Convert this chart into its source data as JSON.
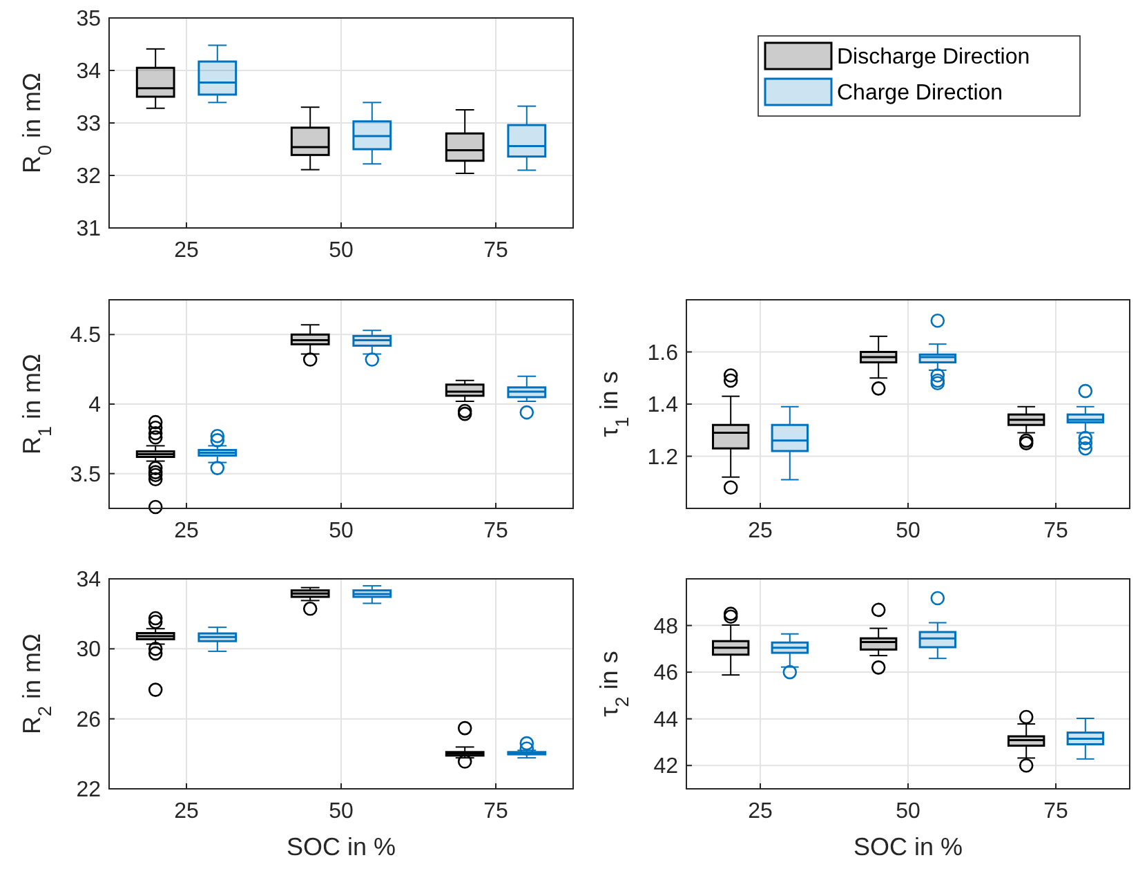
{
  "chart_data": [
    {
      "type": "box",
      "ylabel": "R$_{0}$ in mΩ",
      "xlim": [
        12.5,
        87.5
      ],
      "xticks": [
        25,
        50,
        75
      ],
      "ylim": [
        31,
        35
      ],
      "yticks": [
        31,
        32,
        33,
        34,
        35
      ],
      "grid": true,
      "legend": "right",
      "series": [
        {
          "name": "Discharge Direction",
          "color": "#000000",
          "x": [
            20,
            45,
            70
          ],
          "boxes": [
            {
              "low": 33.28,
              "q1": 33.5,
              "median": 33.66,
              "q3": 34.05,
              "high": 34.41
            },
            {
              "low": 32.11,
              "q1": 32.39,
              "median": 32.54,
              "q3": 32.91,
              "high": 33.3
            },
            {
              "low": 32.04,
              "q1": 32.28,
              "median": 32.48,
              "q3": 32.8,
              "high": 33.25
            }
          ]
        },
        {
          "name": "Charge Direction",
          "color": "#0072bd",
          "x": [
            30,
            55,
            80
          ],
          "boxes": [
            {
              "low": 33.39,
              "q1": 33.54,
              "median": 33.77,
              "q3": 34.17,
              "high": 34.48
            },
            {
              "low": 32.22,
              "q1": 32.5,
              "median": 32.75,
              "q3": 33.03,
              "high": 33.39
            },
            {
              "low": 32.1,
              "q1": 32.36,
              "median": 32.56,
              "q3": 32.96,
              "high": 33.32
            }
          ]
        }
      ]
    },
    {
      "type": "box",
      "ylabel": "R$_{1}$ in mΩ",
      "xlim": [
        12.5,
        87.5
      ],
      "xticks": [
        25,
        50,
        75
      ],
      "ylim": [
        3.25,
        4.75
      ],
      "yticks": [
        3.5,
        4,
        4.5
      ],
      "grid": true,
      "series": [
        {
          "color": "#000000",
          "x": [
            20,
            45,
            70
          ],
          "boxes": [
            {
              "low": 3.59,
              "q1": 3.62,
              "median": 3.64,
              "q3": 3.66,
              "high": 3.7,
              "outliers": [
                3.87,
                3.83,
                3.79,
                3.76,
                3.54,
                3.51,
                3.49,
                3.46,
                3.26
              ]
            },
            {
              "low": 4.36,
              "q1": 4.43,
              "median": 4.46,
              "q3": 4.5,
              "high": 4.57,
              "outliers": [
                4.32
              ]
            },
            {
              "low": 4.02,
              "q1": 4.06,
              "median": 4.09,
              "q3": 4.14,
              "high": 4.17,
              "outliers": [
                3.95,
                3.93
              ]
            }
          ]
        },
        {
          "color": "#0072bd",
          "x": [
            30,
            55,
            80
          ],
          "boxes": [
            {
              "low": 3.58,
              "q1": 3.63,
              "median": 3.65,
              "q3": 3.67,
              "high": 3.7,
              "outliers": [
                3.77,
                3.74,
                3.54
              ]
            },
            {
              "low": 4.36,
              "q1": 4.42,
              "median": 4.46,
              "q3": 4.49,
              "high": 4.53,
              "outliers": [
                4.32
              ]
            },
            {
              "low": 4.02,
              "q1": 4.05,
              "median": 4.09,
              "q3": 4.12,
              "high": 4.2,
              "outliers": [
                3.94
              ]
            }
          ]
        }
      ]
    },
    {
      "type": "box",
      "ylabel": "τ$_{1}$ in s",
      "xlim": [
        12.5,
        87.5
      ],
      "xticks": [
        25,
        50,
        75
      ],
      "ylim": [
        1.0,
        1.8
      ],
      "yticks": [
        1.2,
        1.4,
        1.6
      ],
      "grid": true,
      "series": [
        {
          "color": "#000000",
          "x": [
            20,
            45,
            70
          ],
          "boxes": [
            {
              "low": 1.12,
              "q1": 1.23,
              "median": 1.29,
              "q3": 1.32,
              "high": 1.43,
              "outliers": [
                1.51,
                1.49,
                1.08
              ]
            },
            {
              "low": 1.5,
              "q1": 1.56,
              "median": 1.58,
              "q3": 1.6,
              "high": 1.66,
              "outliers": [
                1.46
              ]
            },
            {
              "low": 1.29,
              "q1": 1.32,
              "median": 1.34,
              "q3": 1.36,
              "high": 1.39,
              "outliers": [
                1.26,
                1.25
              ]
            }
          ]
        },
        {
          "color": "#0072bd",
          "x": [
            30,
            55,
            80
          ],
          "boxes": [
            {
              "low": 1.11,
              "q1": 1.22,
              "median": 1.26,
              "q3": 1.32,
              "high": 1.39
            },
            {
              "low": 1.53,
              "q1": 1.56,
              "median": 1.58,
              "q3": 1.59,
              "high": 1.63,
              "outliers": [
                1.72,
                1.51,
                1.49,
                1.48
              ]
            },
            {
              "low": 1.29,
              "q1": 1.33,
              "median": 1.34,
              "q3": 1.36,
              "high": 1.39,
              "outliers": [
                1.45,
                1.27,
                1.25,
                1.23
              ]
            }
          ]
        }
      ]
    },
    {
      "type": "box",
      "ylabel": "R$_{2}$ in mΩ",
      "xlabel": "SOC in %",
      "xlim": [
        12.5,
        87.5
      ],
      "xticks": [
        25,
        50,
        75
      ],
      "ylim": [
        22,
        34
      ],
      "yticks": [
        22,
        26,
        30,
        34
      ],
      "grid": true,
      "series": [
        {
          "color": "#000000",
          "x": [
            20,
            45,
            70
          ],
          "boxes": [
            {
              "low": 30.27,
              "q1": 30.55,
              "median": 30.72,
              "q3": 30.9,
              "high": 31.15,
              "outliers": [
                31.75,
                31.54,
                30.0,
                29.74,
                27.66
              ]
            },
            {
              "low": 32.76,
              "q1": 32.97,
              "median": 33.16,
              "q3": 33.34,
              "high": 33.5,
              "outliers": [
                32.29
              ]
            },
            {
              "low": 23.77,
              "q1": 23.9,
              "median": 24.0,
              "q3": 24.1,
              "high": 24.39,
              "outliers": [
                25.47,
                23.56
              ]
            }
          ]
        },
        {
          "color": "#0072bd",
          "x": [
            30,
            55,
            80
          ],
          "boxes": [
            {
              "low": 29.86,
              "q1": 30.44,
              "median": 30.67,
              "q3": 30.88,
              "high": 31.23
            },
            {
              "low": 32.6,
              "q1": 32.97,
              "median": 33.13,
              "q3": 33.34,
              "high": 33.6
            },
            {
              "low": 23.77,
              "q1": 23.97,
              "median": 24.05,
              "q3": 24.1,
              "high": 24.2,
              "outliers": [
                24.6,
                24.3
              ]
            }
          ]
        }
      ]
    },
    {
      "type": "box",
      "ylabel": "τ$_{2}$ in s",
      "xlabel": "SOC in %",
      "xlim": [
        12.5,
        87.5
      ],
      "xticks": [
        25,
        50,
        75
      ],
      "ylim": [
        41,
        50
      ],
      "yticks": [
        42,
        44,
        46,
        48
      ],
      "grid": true,
      "series": [
        {
          "color": "#000000",
          "x": [
            20,
            45,
            70
          ],
          "boxes": [
            {
              "low": 45.88,
              "q1": 46.75,
              "median": 47.05,
              "q3": 47.33,
              "high": 48.02,
              "outliers": [
                48.5,
                48.38
              ]
            },
            {
              "low": 46.71,
              "q1": 46.97,
              "median": 47.29,
              "q3": 47.45,
              "high": 47.88,
              "outliers": [
                48.67,
                46.2
              ]
            },
            {
              "low": 42.32,
              "q1": 42.85,
              "median": 43.09,
              "q3": 43.25,
              "high": 43.78,
              "outliers": [
                44.08,
                42.0
              ]
            }
          ]
        },
        {
          "color": "#0072bd",
          "x": [
            30,
            55,
            80
          ],
          "boxes": [
            {
              "low": 46.22,
              "q1": 46.83,
              "median": 47.05,
              "q3": 47.27,
              "high": 47.64,
              "outliers": [
                46.0
              ]
            },
            {
              "low": 46.59,
              "q1": 47.07,
              "median": 47.45,
              "q3": 47.72,
              "high": 48.12,
              "outliers": [
                49.17
              ]
            },
            {
              "low": 42.28,
              "q1": 42.91,
              "median": 43.15,
              "q3": 43.41,
              "high": 44.02
            }
          ]
        }
      ]
    }
  ]
}
